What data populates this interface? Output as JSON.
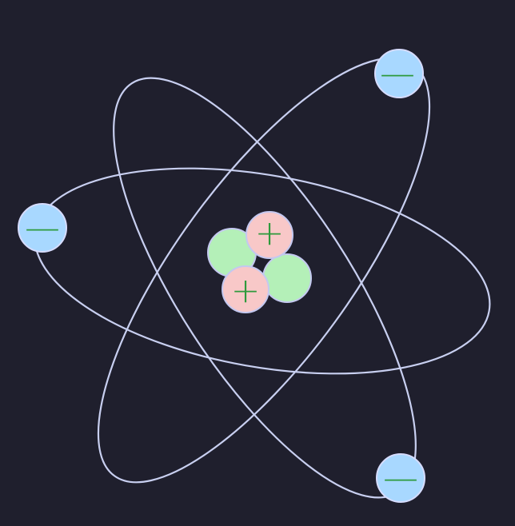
{
  "diagram": {
    "type": "atom",
    "orbit_count": 3,
    "nucleus": {
      "protons": [
        {
          "sign": "+"
        },
        {
          "sign": "+"
        }
      ],
      "neutrons": [
        {
          "label": ""
        },
        {
          "label": ""
        }
      ]
    },
    "electrons": [
      {
        "sign": "—"
      },
      {
        "sign": "—"
      },
      {
        "sign": "—"
      }
    ]
  },
  "colors": {
    "background": "#1f1f2d",
    "orbit_stroke": "#c8cff0",
    "electron_fill": "#a8d8ff",
    "electron_stroke": "#d6dcff",
    "proton_fill": "#f8c8c8",
    "neutron_fill": "#b4f0b8",
    "particle_stroke": "#c4c8f0",
    "sign_color": "#2e9a3c"
  }
}
